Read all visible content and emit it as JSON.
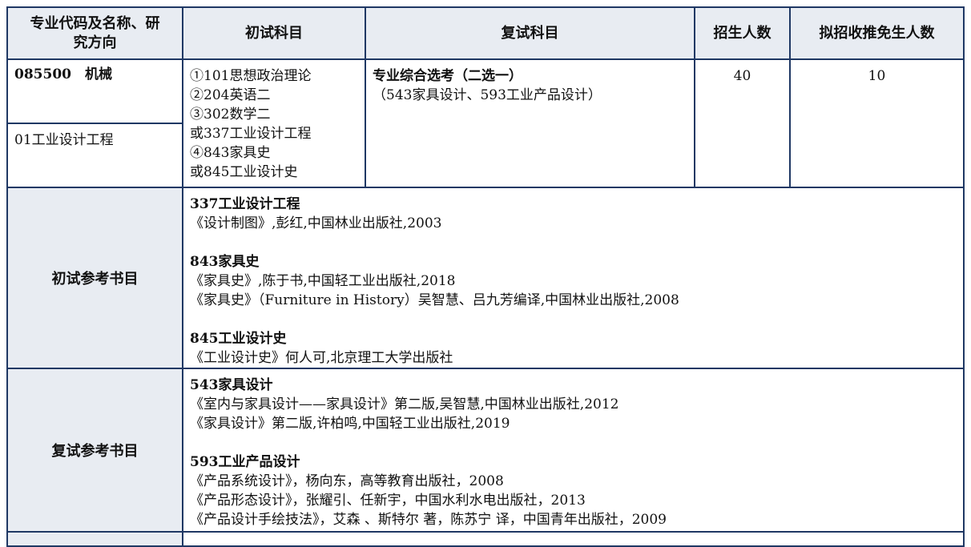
{
  "headers": [
    "专业代码及名称、研究方向",
    "初试科目",
    "复试科目",
    "招生人数",
    "拟招收推免生人数"
  ],
  "major": {
    "code_name": "085500　机械",
    "direction": "01工业设计工程"
  },
  "exam_subjects": [
    "①101思想政治理论",
    "②204英语二",
    "③302数学二",
    "或337工业设计工程",
    "④843家具史",
    "或845工业设计史"
  ],
  "retest": {
    "title": "专业综合选考（二选一）",
    "detail": "（543家具设计、593工业产品设计）"
  },
  "enrollment": "40",
  "exempt": "10",
  "initial_refs": {
    "label": "初试参考书目",
    "groups": [
      {
        "title": "337工业设计工程",
        "books": [
          "《设计制图》,彭红,中国林业出版社,2003"
        ]
      },
      {
        "title": "843家具史",
        "books": [
          "《家具史》,陈于书,中国轻工业出版社,2018",
          "《家具史》（Furniture in History）吴智慧、吕九芳编译,中国林业出版社,2008"
        ]
      },
      {
        "title": "845工业设计史",
        "books": [
          "《工业设计史》何人可,北京理工大学出版社"
        ]
      }
    ]
  },
  "retest_refs": {
    "label": "复试参考书目",
    "groups": [
      {
        "title": "543家具设计",
        "books": [
          "《室内与家具设计——家具设计》第二版,吴智慧,中国林业出版社,2012",
          "《家具设计》第二版,许柏鸣,中国轻工业出版社,2019"
        ]
      },
      {
        "title": "593工业产品设计",
        "books": [
          "《产品系统设计》，杨向东，高等教育出版社，2008",
          "《产品形态设计》，张耀引、任新宇，中国水利水电出版社，2013",
          "《产品设计手绘技法》，艾森 、斯特尔 著，陈苏宁 译，中国青年出版社，2009"
        ]
      }
    ]
  }
}
